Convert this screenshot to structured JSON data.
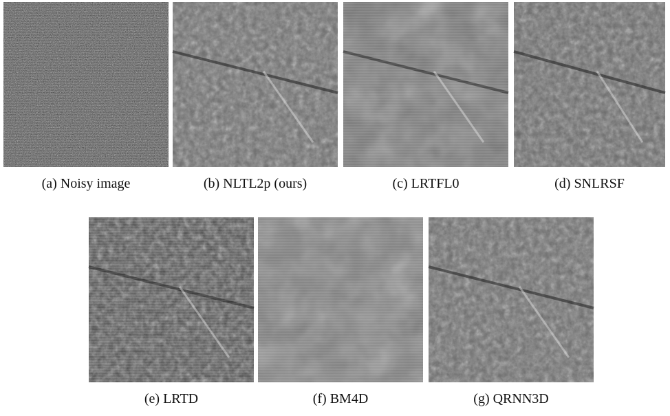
{
  "figure": {
    "panels": [
      {
        "caption": "(a) Noisy image"
      },
      {
        "caption": "(b) NLTL2p (ours)"
      },
      {
        "caption": "(c) LRTFL0"
      },
      {
        "caption": "(d) SNLRSF"
      },
      {
        "caption": "(e) LRTD"
      },
      {
        "caption": "(f) BM4D"
      },
      {
        "caption": "(g) QRNN3D"
      }
    ]
  }
}
